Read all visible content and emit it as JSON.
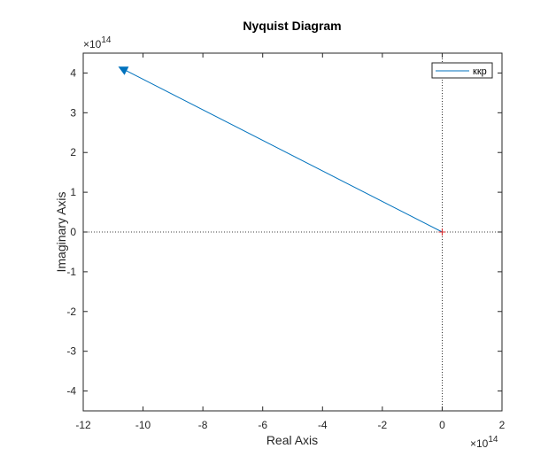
{
  "chart_data": {
    "type": "line",
    "title": "Nyquist Diagram",
    "xlabel": "Real Axis",
    "ylabel": "Imaginary Axis",
    "x_exponent_base": "×10",
    "x_exponent_power": "14",
    "y_exponent_base": "×10",
    "y_exponent_power": "14",
    "xlim": [
      -12,
      2
    ],
    "ylim": [
      -4.5,
      4.5
    ],
    "xticks": [
      -12,
      -10,
      -8,
      -6,
      -4,
      -2,
      0,
      2
    ],
    "yticks": [
      -4,
      -3,
      -2,
      -1,
      0,
      1,
      2,
      3,
      4
    ],
    "xtick_labels": [
      "-12",
      "-10",
      "-8",
      "-6",
      "-4",
      "-2",
      "0",
      "2"
    ],
    "ytick_labels": [
      "-4",
      "-3",
      "-2",
      "-1",
      "0",
      "1",
      "2",
      "3",
      "4"
    ],
    "grid": false,
    "zero_lines": "dotted",
    "legend_position": "top-right",
    "series": [
      {
        "name": "ккp",
        "color": "#0072BD",
        "x": [
          0,
          -10.8
        ],
        "y": [
          0,
          4.15
        ],
        "arrow": "end"
      }
    ],
    "critical_point": {
      "x": -1e-14,
      "y": 0,
      "marker": "+",
      "color": "#D62728"
    }
  }
}
